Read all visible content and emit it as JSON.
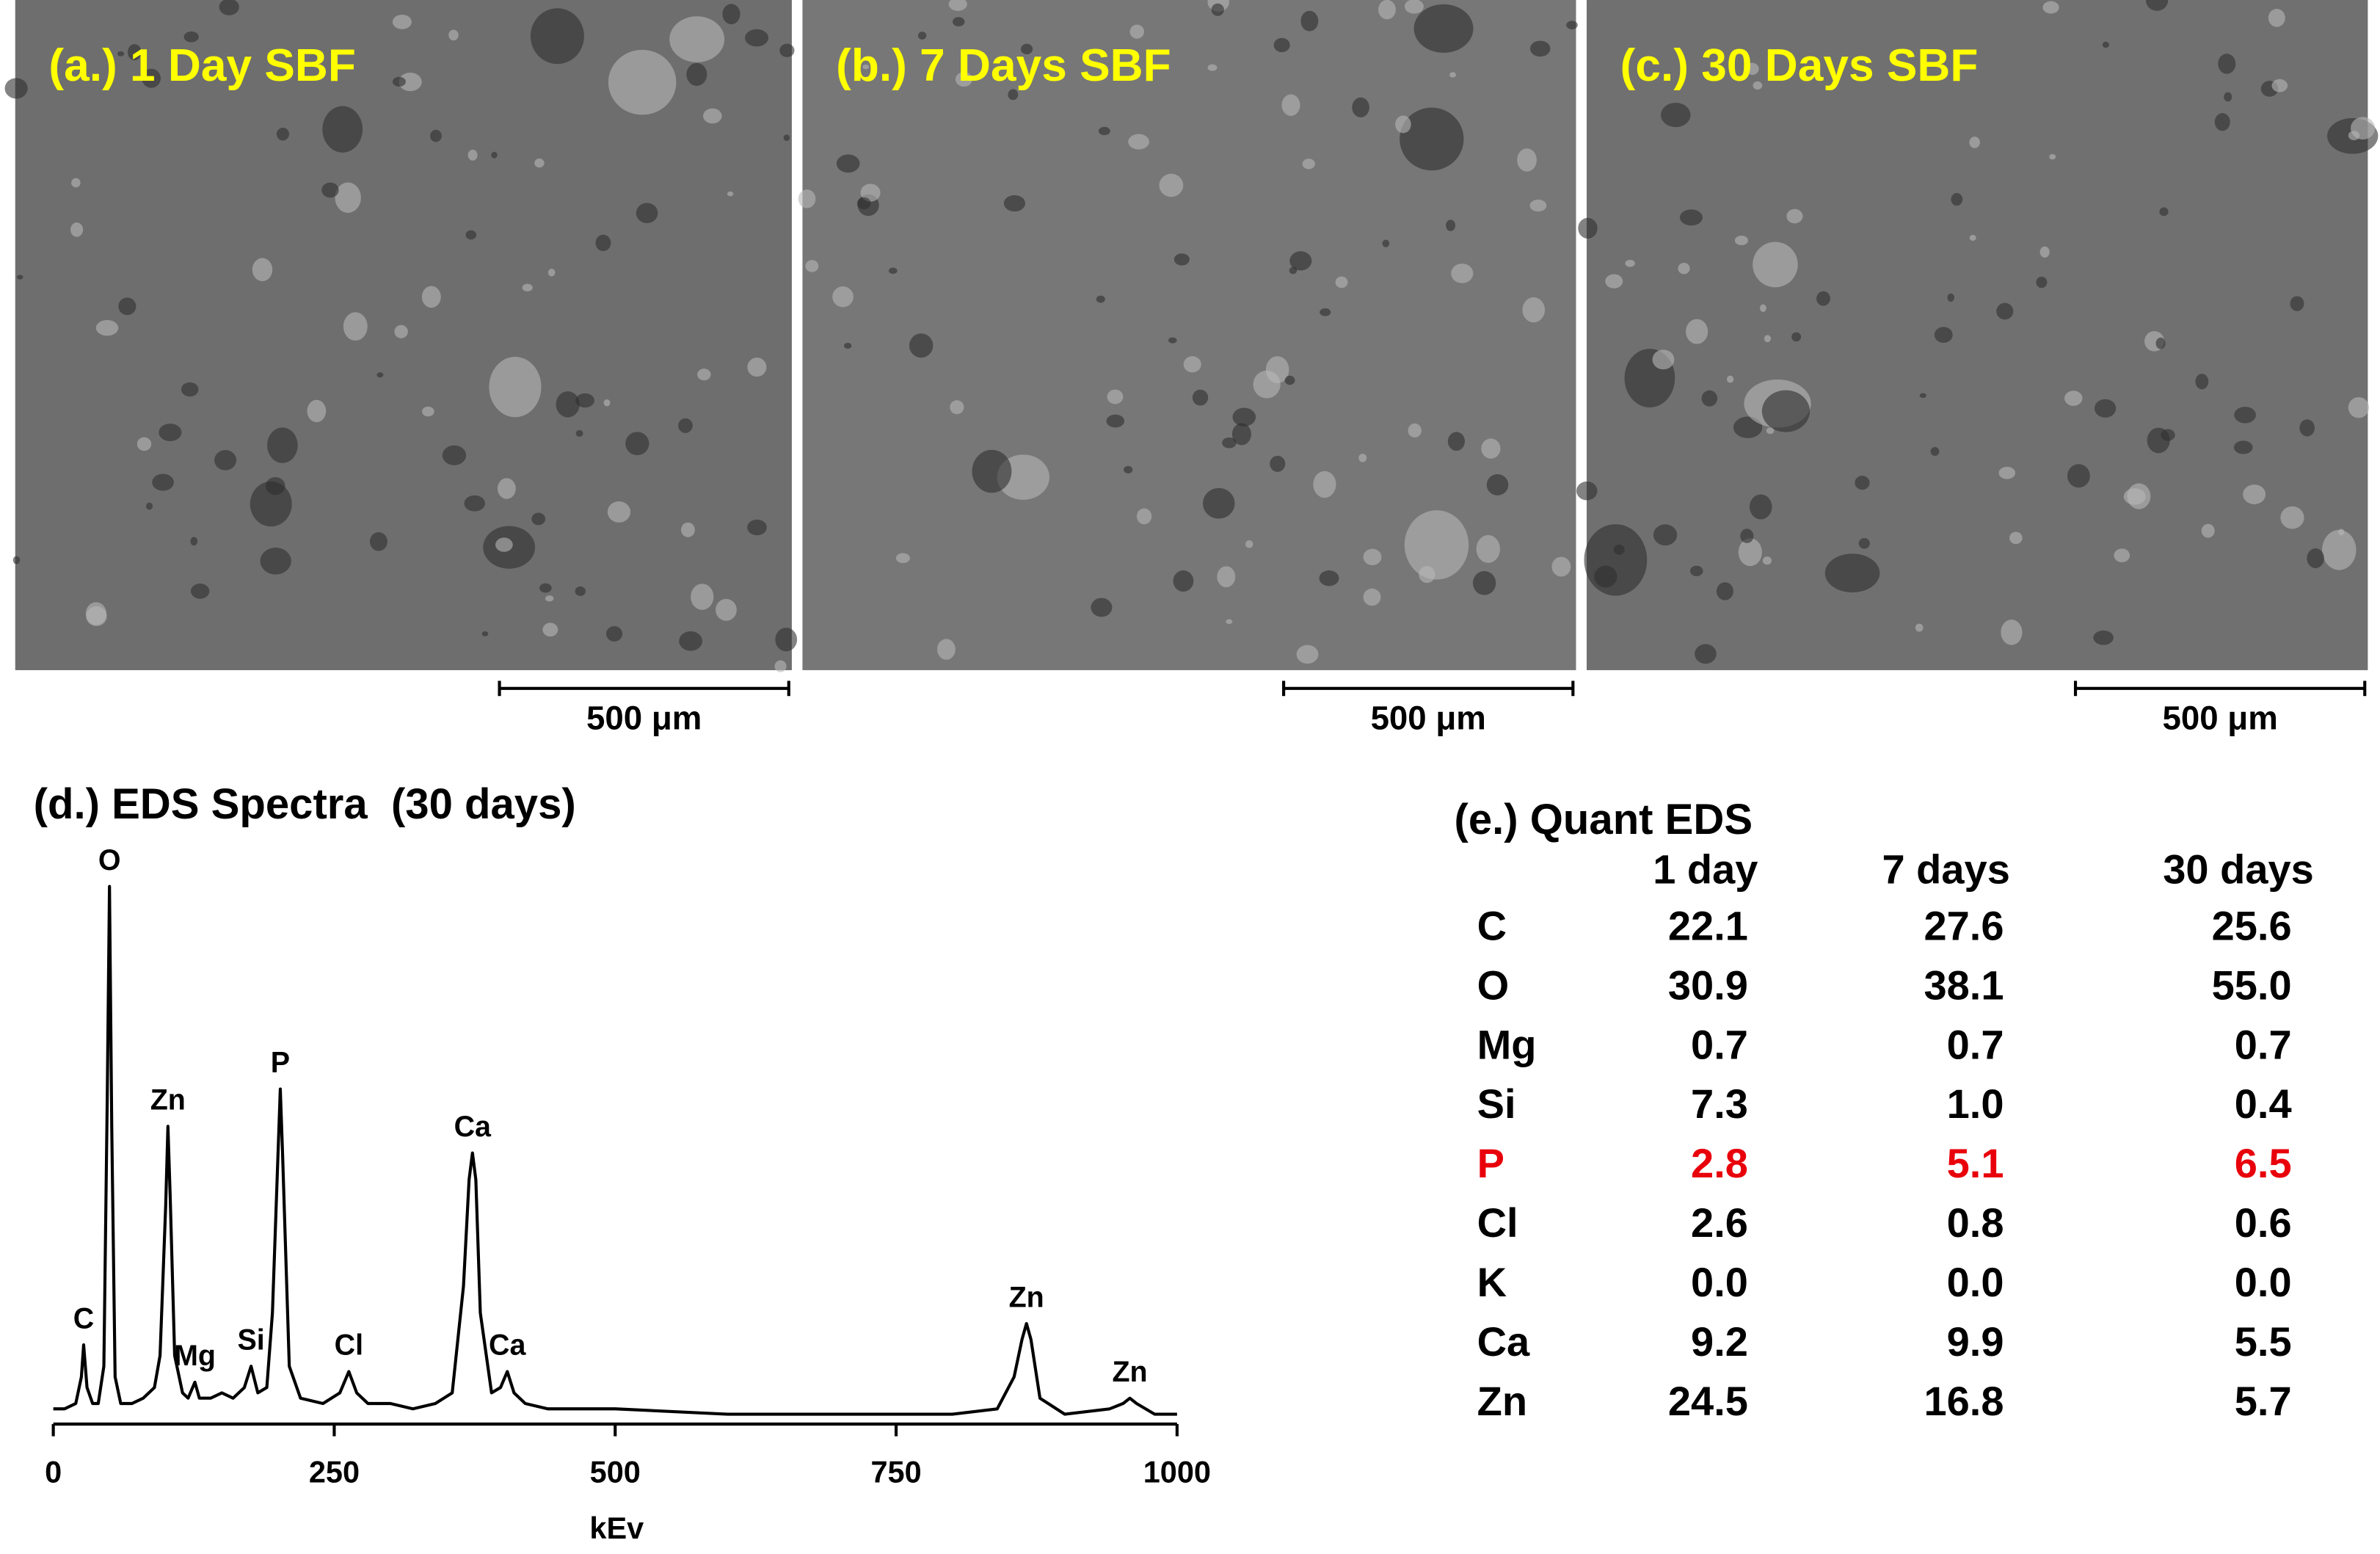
{
  "panels": [
    {
      "label": "(a.) 1 Day SBF",
      "scale_bar": "500 μm"
    },
    {
      "label": "(b.) 7 Days SBF",
      "scale_bar": "500 μm"
    },
    {
      "label": "(c.) 30 Days SBF",
      "scale_bar": "500 μm"
    }
  ],
  "chart_data": {
    "type": "line",
    "title": "(d.) EDS Spectra  (30 days)",
    "xlabel": "kEv",
    "color": "#000000",
    "xlim": [
      0,
      1000
    ],
    "xticks": [
      0,
      250,
      500,
      750,
      1000
    ],
    "ylim": [
      0,
      100
    ],
    "x": [
      0,
      10,
      20,
      25,
      27,
      30,
      35,
      40,
      45,
      48,
      50,
      52,
      55,
      60,
      70,
      80,
      90,
      95,
      100,
      102,
      104,
      108,
      115,
      120,
      126,
      130,
      140,
      150,
      160,
      170,
      176,
      182,
      190,
      195,
      200,
      202,
      204,
      210,
      220,
      240,
      255,
      263,
      270,
      280,
      300,
      320,
      340,
      355,
      365,
      370,
      373,
      376,
      380,
      390,
      398,
      404,
      410,
      420,
      440,
      500,
      600,
      700,
      800,
      840,
      855,
      862,
      866,
      870,
      878,
      900,
      940,
      952,
      958,
      964,
      980,
      1000
    ],
    "values": [
      2,
      2,
      3,
      8,
      14,
      6,
      3,
      3,
      10,
      60,
      100,
      55,
      8,
      3,
      3,
      4,
      6,
      12,
      40,
      55,
      42,
      12,
      5,
      4,
      7,
      4,
      4,
      5,
      4,
      6,
      10,
      5,
      6,
      20,
      50,
      62,
      50,
      10,
      4,
      3,
      5,
      9,
      5,
      3,
      3,
      2,
      3,
      5,
      25,
      45,
      50,
      45,
      20,
      5,
      6,
      9,
      5,
      3,
      2,
      2,
      1,
      1,
      1,
      2,
      8,
      15,
      18,
      15,
      4,
      1,
      2,
      3,
      4,
      3,
      1,
      1
    ],
    "peaks": [
      {
        "label": "C",
        "x": 27
      },
      {
        "label": "O",
        "x": 50
      },
      {
        "label": "Zn",
        "x": 102
      },
      {
        "label": "Mg",
        "x": 126
      },
      {
        "label": "Si",
        "x": 176
      },
      {
        "label": "P",
        "x": 202
      },
      {
        "label": "Cl",
        "x": 263
      },
      {
        "label": "Ca",
        "x": 373
      },
      {
        "label": "Ca",
        "x": 404
      },
      {
        "label": "Zn",
        "x": 866
      },
      {
        "label": "Zn",
        "x": 958
      }
    ]
  },
  "table": {
    "title": "(e.) Quant EDS",
    "columns": [
      "1 day",
      "7 days",
      "30 days"
    ],
    "rows": [
      {
        "cells": [
          "C",
          "22.1",
          "27.6",
          "25.6"
        ]
      },
      {
        "cells": [
          "O",
          "30.9",
          "38.1",
          "55.0"
        ]
      },
      {
        "cells": [
          "Mg",
          "0.7",
          "0.7",
          "0.7"
        ]
      },
      {
        "cells": [
          "Si",
          "7.3",
          "1.0",
          "0.4"
        ]
      },
      {
        "cells": [
          "P",
          "2.8",
          "5.1",
          "6.5"
        ],
        "color": "#e8000b"
      },
      {
        "cells": [
          "Cl",
          "2.6",
          "0.8",
          "0.6"
        ]
      },
      {
        "cells": [
          "K",
          "0.0",
          "0.0",
          "0.0"
        ]
      },
      {
        "cells": [
          "Ca",
          "9.2",
          "9.9",
          "5.5"
        ]
      },
      {
        "cells": [
          "Zn",
          "24.5",
          "16.8",
          "5.7"
        ]
      }
    ]
  }
}
